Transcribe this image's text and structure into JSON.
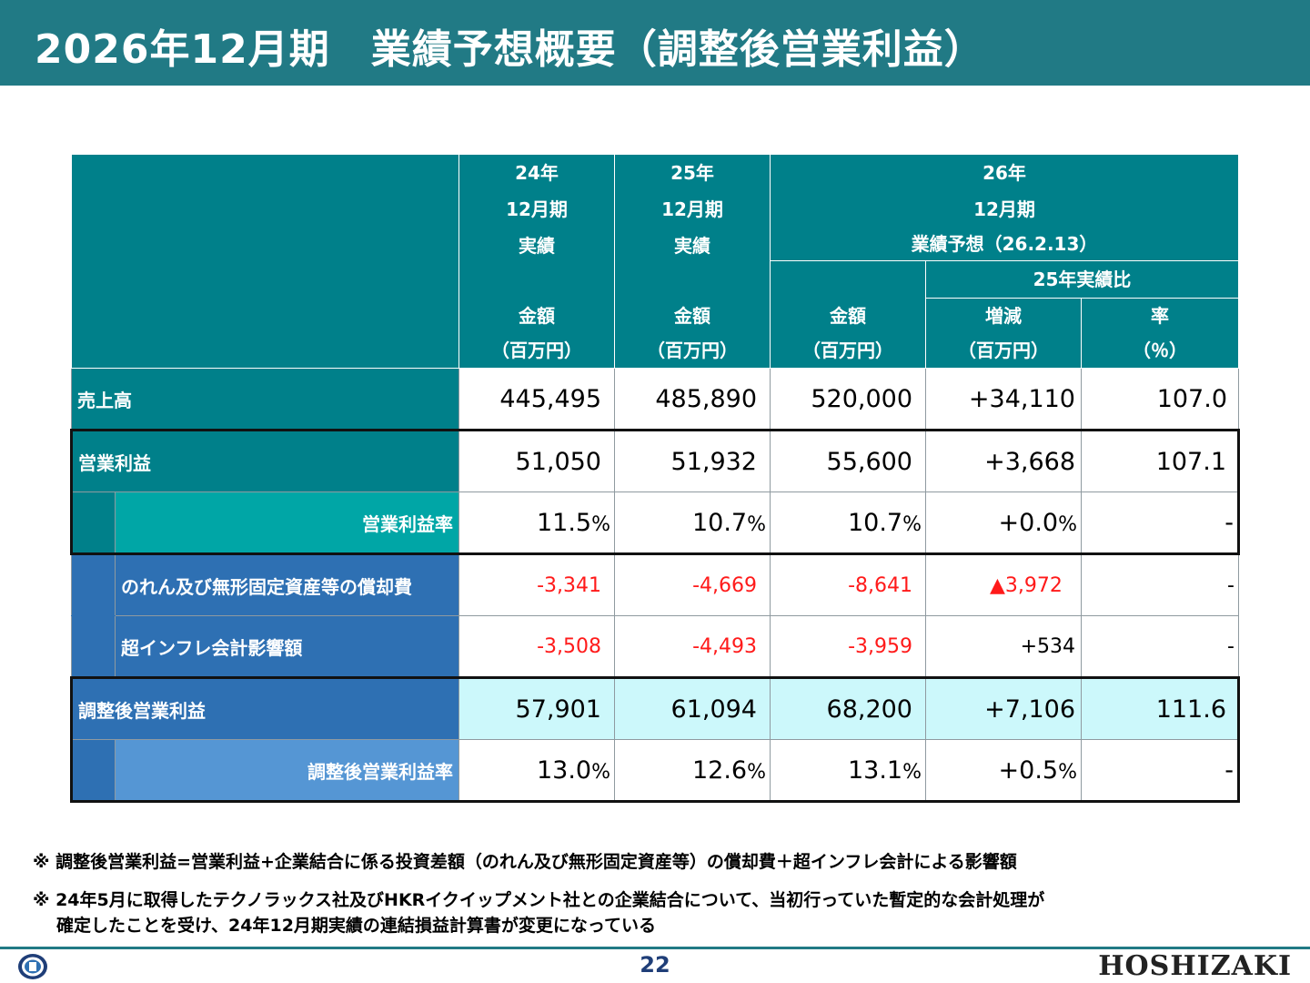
{
  "title": "2026年12月期　業績予想概要（調整後営業利益）",
  "header": {
    "col_fy24": [
      "24年",
      "12月期",
      "実績"
    ],
    "col_fy25": [
      "25年",
      "12月期",
      "実績"
    ],
    "col_fy26": [
      "26年",
      "12月期",
      "業績予想（26.2.13）"
    ],
    "vs_prev": "25年実績比",
    "amount": "金額",
    "unit_mil": "（百万円）",
    "change": "増減",
    "rate": "率",
    "unit_pct": "（％）"
  },
  "rows": {
    "sales": {
      "label": "売上高",
      "fy24": "445,495",
      "fy25": "485,890",
      "fy26": "520,000",
      "diff": "+34,110",
      "rate": "107.0"
    },
    "op": {
      "label": "営業利益",
      "fy24": "51,050",
      "fy25": "51,932",
      "fy26": "55,600",
      "diff": "+3,668",
      "rate": "107.1"
    },
    "op_margin": {
      "label": "営業利益率",
      "fy24": "11.5",
      "fy25": "10.7",
      "fy26": "10.7",
      "diff": "+0.0",
      "rate": "-"
    },
    "amort": {
      "label": "のれん及び無形固定資産等の償却費",
      "fy24": "-3,341",
      "fy25": "-4,669",
      "fy26": "-8,641",
      "diff": "▲3,972",
      "rate": "-"
    },
    "hyperinf": {
      "label": "超インフレ会計影響額",
      "fy24": "-3,508",
      "fy25": "-4,493",
      "fy26": "-3,959",
      "diff": "+534",
      "rate": "-"
    },
    "adj_op": {
      "label": "調整後営業利益",
      "fy24": "57,901",
      "fy25": "61,094",
      "fy26": "68,200",
      "diff": "+7,106",
      "rate": "111.6"
    },
    "adj_margin": {
      "label": "調整後営業利益率",
      "fy24": "13.0",
      "fy25": "12.6",
      "fy26": "13.1",
      "diff": "+0.5",
      "rate": "-"
    }
  },
  "pct_sign": "%",
  "notes": [
    "※ 調整後営業利益=営業利益+企業結合に係る投資差額（のれん及び無形固定資産等）の償却費＋超インフレ会計による影響額",
    "※ 24年5月に取得したテクノラックス社及びHKRイクイップメント社との企業結合について、当初行っていた暫定的な会計処理が",
    "確定したことを受け、24年12月期実績の連結損益計算書が変更になっている"
  ],
  "page_number": "22",
  "logo": "HOSHIZAKI",
  "icons": {
    "seal": "company-seal-icon"
  },
  "colors": {
    "title_bar": "#217a85",
    "header": "#00808a",
    "blue_label": "#2e70b3",
    "negative": "#ff1a1a",
    "highlight_row": "#ccf8fb"
  }
}
